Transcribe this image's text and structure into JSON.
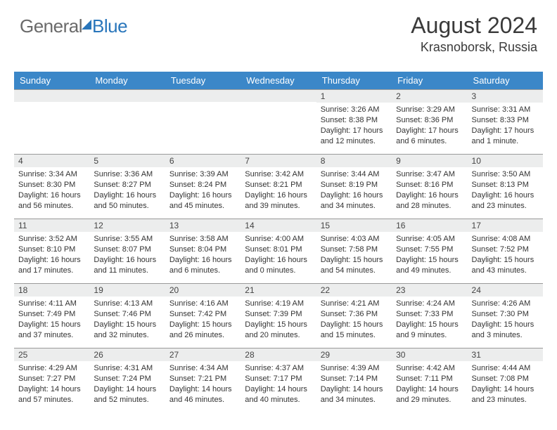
{
  "logo": {
    "part1": "General",
    "part2": "Blue"
  },
  "header": {
    "month": "August 2024",
    "location": "Krasnoborsk, Russia"
  },
  "daynames": [
    "Sunday",
    "Monday",
    "Tuesday",
    "Wednesday",
    "Thursday",
    "Friday",
    "Saturday"
  ],
  "colors": {
    "header_bg": "#3b87c8",
    "daynum_bg": "#eceded",
    "accent": "#2976bb"
  },
  "weeks": [
    [
      null,
      null,
      null,
      null,
      {
        "n": "1",
        "sr": "3:26 AM",
        "ss": "8:38 PM",
        "dl": "17 hours and 12 minutes."
      },
      {
        "n": "2",
        "sr": "3:29 AM",
        "ss": "8:36 PM",
        "dl": "17 hours and 6 minutes."
      },
      {
        "n": "3",
        "sr": "3:31 AM",
        "ss": "8:33 PM",
        "dl": "17 hours and 1 minute."
      }
    ],
    [
      {
        "n": "4",
        "sr": "3:34 AM",
        "ss": "8:30 PM",
        "dl": "16 hours and 56 minutes."
      },
      {
        "n": "5",
        "sr": "3:36 AM",
        "ss": "8:27 PM",
        "dl": "16 hours and 50 minutes."
      },
      {
        "n": "6",
        "sr": "3:39 AM",
        "ss": "8:24 PM",
        "dl": "16 hours and 45 minutes."
      },
      {
        "n": "7",
        "sr": "3:42 AM",
        "ss": "8:21 PM",
        "dl": "16 hours and 39 minutes."
      },
      {
        "n": "8",
        "sr": "3:44 AM",
        "ss": "8:19 PM",
        "dl": "16 hours and 34 minutes."
      },
      {
        "n": "9",
        "sr": "3:47 AM",
        "ss": "8:16 PM",
        "dl": "16 hours and 28 minutes."
      },
      {
        "n": "10",
        "sr": "3:50 AM",
        "ss": "8:13 PM",
        "dl": "16 hours and 23 minutes."
      }
    ],
    [
      {
        "n": "11",
        "sr": "3:52 AM",
        "ss": "8:10 PM",
        "dl": "16 hours and 17 minutes."
      },
      {
        "n": "12",
        "sr": "3:55 AM",
        "ss": "8:07 PM",
        "dl": "16 hours and 11 minutes."
      },
      {
        "n": "13",
        "sr": "3:58 AM",
        "ss": "8:04 PM",
        "dl": "16 hours and 6 minutes."
      },
      {
        "n": "14",
        "sr": "4:00 AM",
        "ss": "8:01 PM",
        "dl": "16 hours and 0 minutes."
      },
      {
        "n": "15",
        "sr": "4:03 AM",
        "ss": "7:58 PM",
        "dl": "15 hours and 54 minutes."
      },
      {
        "n": "16",
        "sr": "4:05 AM",
        "ss": "7:55 PM",
        "dl": "15 hours and 49 minutes."
      },
      {
        "n": "17",
        "sr": "4:08 AM",
        "ss": "7:52 PM",
        "dl": "15 hours and 43 minutes."
      }
    ],
    [
      {
        "n": "18",
        "sr": "4:11 AM",
        "ss": "7:49 PM",
        "dl": "15 hours and 37 minutes."
      },
      {
        "n": "19",
        "sr": "4:13 AM",
        "ss": "7:46 PM",
        "dl": "15 hours and 32 minutes."
      },
      {
        "n": "20",
        "sr": "4:16 AM",
        "ss": "7:42 PM",
        "dl": "15 hours and 26 minutes."
      },
      {
        "n": "21",
        "sr": "4:19 AM",
        "ss": "7:39 PM",
        "dl": "15 hours and 20 minutes."
      },
      {
        "n": "22",
        "sr": "4:21 AM",
        "ss": "7:36 PM",
        "dl": "15 hours and 15 minutes."
      },
      {
        "n": "23",
        "sr": "4:24 AM",
        "ss": "7:33 PM",
        "dl": "15 hours and 9 minutes."
      },
      {
        "n": "24",
        "sr": "4:26 AM",
        "ss": "7:30 PM",
        "dl": "15 hours and 3 minutes."
      }
    ],
    [
      {
        "n": "25",
        "sr": "4:29 AM",
        "ss": "7:27 PM",
        "dl": "14 hours and 57 minutes."
      },
      {
        "n": "26",
        "sr": "4:31 AM",
        "ss": "7:24 PM",
        "dl": "14 hours and 52 minutes."
      },
      {
        "n": "27",
        "sr": "4:34 AM",
        "ss": "7:21 PM",
        "dl": "14 hours and 46 minutes."
      },
      {
        "n": "28",
        "sr": "4:37 AM",
        "ss": "7:17 PM",
        "dl": "14 hours and 40 minutes."
      },
      {
        "n": "29",
        "sr": "4:39 AM",
        "ss": "7:14 PM",
        "dl": "14 hours and 34 minutes."
      },
      {
        "n": "30",
        "sr": "4:42 AM",
        "ss": "7:11 PM",
        "dl": "14 hours and 29 minutes."
      },
      {
        "n": "31",
        "sr": "4:44 AM",
        "ss": "7:08 PM",
        "dl": "14 hours and 23 minutes."
      }
    ]
  ]
}
